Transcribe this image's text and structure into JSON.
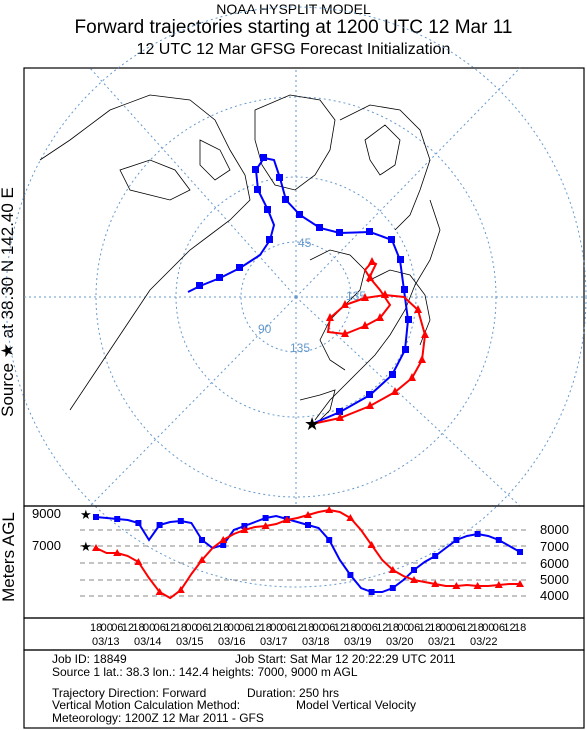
{
  "header": {
    "model": "NOAA HYSPLIT MODEL",
    "title": "Forward trajectories starting at 1200 UTC 12 Mar 11",
    "subtitle": "12 UTC 12 Mar    GFSG  Forecast Initialization"
  },
  "source_label": "Source ★ at   38.30 N  142.40 E",
  "map": {
    "grid_labels": [
      "45",
      "90",
      "135",
      "135"
    ],
    "colors": {
      "red": "#ff0000",
      "blue": "#0000ff",
      "grid": "#6699cc",
      "coast": "#000000"
    }
  },
  "vertical": {
    "ylabel": "Meters AGL",
    "left_ticks": [
      "9000",
      "7000"
    ],
    "right_ticks": [
      "8000",
      "7000",
      "6000",
      "5000",
      "4000"
    ]
  },
  "time_axis": {
    "hours": [
      "18",
      "00",
      "06",
      "12",
      "18",
      "00",
      "06",
      "12",
      "18",
      "00",
      "06",
      "12",
      "18",
      "00",
      "06",
      "12",
      "18",
      "00",
      "06",
      "12",
      "18",
      "00",
      "06",
      "12",
      "18",
      "00",
      "06",
      "12",
      "18",
      "00",
      "06",
      "12",
      "18",
      "00",
      "06",
      "12",
      "18",
      "00",
      "06",
      "12",
      "18"
    ],
    "dates": [
      "03/13",
      "03/14",
      "03/15",
      "03/16",
      "03/17",
      "03/18",
      "03/19",
      "03/20",
      "03/21",
      "03/22"
    ]
  },
  "info": {
    "job_id": "Job ID: 18849",
    "job_start": "Job Start: Sat Mar 12 20:22:29 UTC 2011",
    "source": "Source 1 lat.: 38.3  lon.: 142.4  heights: 7000, 9000 m AGL",
    "direction": "Trajectory Direction: Forward",
    "duration": "Duration: 250 hrs",
    "vertical_method": "Vertical Motion Calculation Method:",
    "vertical_method_value": "Model Vertical Velocity",
    "meteorology": "Meteorology: 1200Z 12 Mar 2011 - GFS"
  }
}
